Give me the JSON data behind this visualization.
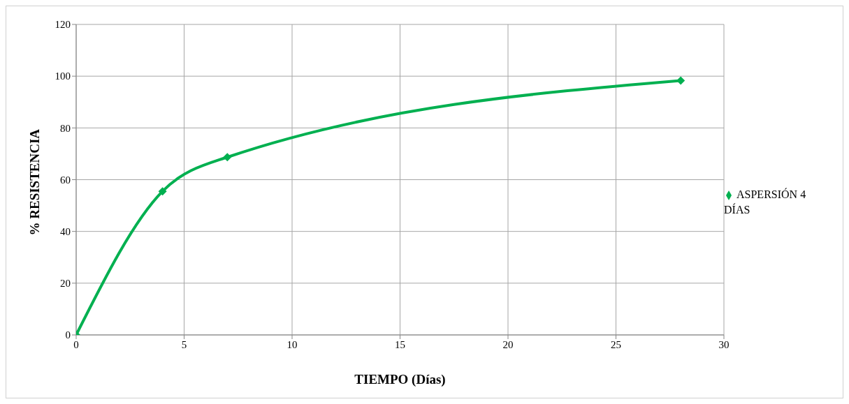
{
  "chart_data": {
    "type": "line",
    "xlabel": "TIEMPO (Días)",
    "ylabel": "%     RESISTENCIA",
    "x": [
      0,
      4,
      7,
      28
    ],
    "series": [
      {
        "name": "ASPERSIÓN 4 DÍAS",
        "color": "#00b050",
        "values": [
          0,
          55.5,
          68.7,
          98.3
        ]
      }
    ],
    "xlim": [
      0,
      30
    ],
    "xticks": [
      0,
      5,
      10,
      15,
      20,
      25,
      30
    ],
    "ylim": [
      0,
      120
    ],
    "yticks": [
      0,
      20,
      40,
      60,
      80,
      100,
      120
    ],
    "grid": true,
    "legend": "right",
    "marker": "diamond",
    "line_style": "solid"
  }
}
